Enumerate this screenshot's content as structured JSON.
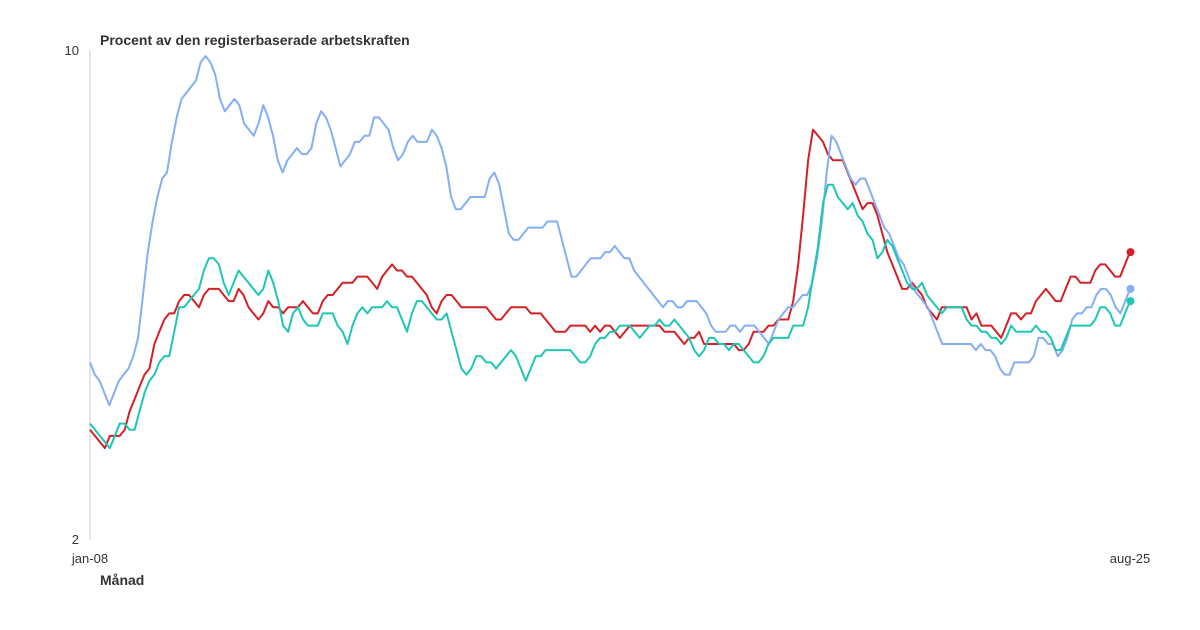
{
  "chart_data": {
    "type": "line",
    "ylabel": "Procent av den registerbaserade arbetskraften",
    "xlabel": "Månad",
    "ylim": [
      2,
      10
    ],
    "yticks": [
      "10",
      "2"
    ],
    "xticks": [
      "jan-08",
      "aug-25"
    ],
    "x_start": "2008-01",
    "x_end": "2025-08",
    "grid": false,
    "legend": "none",
    "series": [
      {
        "color": "#d42027",
        "values": [
          3.8,
          3.7,
          3.6,
          3.5,
          3.7,
          3.7,
          3.7,
          3.8,
          4.1,
          4.3,
          4.5,
          4.7,
          4.8,
          5.2,
          5.4,
          5.6,
          5.7,
          5.7,
          5.9,
          6.0,
          6.0,
          5.9,
          5.8,
          6.0,
          6.1,
          6.1,
          6.1,
          6.0,
          5.9,
          5.9,
          6.1,
          6.0,
          5.8,
          5.7,
          5.6,
          5.7,
          5.9,
          5.8,
          5.8,
          5.7,
          5.8,
          5.8,
          5.8,
          5.9,
          5.8,
          5.7,
          5.7,
          5.9,
          6.0,
          6.0,
          6.1,
          6.2,
          6.2,
          6.2,
          6.3,
          6.3,
          6.3,
          6.2,
          6.1,
          6.3,
          6.4,
          6.5,
          6.4,
          6.4,
          6.3,
          6.3,
          6.2,
          6.1,
          6.0,
          5.8,
          5.7,
          5.9,
          6.0,
          6.0,
          5.9,
          5.8,
          5.8,
          5.8,
          5.8,
          5.8,
          5.8,
          5.7,
          5.6,
          5.6,
          5.7,
          5.8,
          5.8,
          5.8,
          5.8,
          5.7,
          5.7,
          5.7,
          5.6,
          5.5,
          5.4,
          5.4,
          5.4,
          5.5,
          5.5,
          5.5,
          5.5,
          5.4,
          5.5,
          5.4,
          5.5,
          5.5,
          5.4,
          5.3,
          5.4,
          5.5,
          5.5,
          5.5,
          5.5,
          5.5,
          5.5,
          5.5,
          5.4,
          5.4,
          5.4,
          5.3,
          5.2,
          5.3,
          5.3,
          5.4,
          5.2,
          5.2,
          5.2,
          5.2,
          5.2,
          5.2,
          5.2,
          5.1,
          5.1,
          5.2,
          5.4,
          5.4,
          5.4,
          5.5,
          5.5,
          5.6,
          5.6,
          5.6,
          5.9,
          6.5,
          7.3,
          8.2,
          8.7,
          8.6,
          8.5,
          8.3,
          8.2,
          8.2,
          8.2,
          8.0,
          7.8,
          7.6,
          7.4,
          7.5,
          7.5,
          7.3,
          7.0,
          6.7,
          6.5,
          6.3,
          6.1,
          6.1,
          6.2,
          6.1,
          6.0,
          5.8,
          5.7,
          5.6,
          5.8,
          5.8,
          5.8,
          5.8,
          5.8,
          5.8,
          5.6,
          5.7,
          5.5,
          5.5,
          5.5,
          5.4,
          5.3,
          5.5,
          5.7,
          5.7,
          5.6,
          5.7,
          5.7,
          5.9,
          6.0,
          6.1,
          6.0,
          5.9,
          5.9,
          6.1,
          6.3,
          6.3,
          6.2,
          6.2,
          6.2,
          6.4,
          6.5,
          6.5,
          6.4,
          6.3,
          6.3,
          6.5,
          6.7
        ]
      },
      {
        "color": "#84aef5",
        "values": [
          4.9,
          4.7,
          4.6,
          4.4,
          4.2,
          4.4,
          4.6,
          4.7,
          4.8,
          5.0,
          5.3,
          6.0,
          6.7,
          7.2,
          7.6,
          7.9,
          8.0,
          8.5,
          8.9,
          9.2,
          9.3,
          9.4,
          9.5,
          9.8,
          9.9,
          9.8,
          9.6,
          9.2,
          9.0,
          9.1,
          9.2,
          9.1,
          8.8,
          8.7,
          8.6,
          8.8,
          9.1,
          8.9,
          8.6,
          8.2,
          8.0,
          8.2,
          8.3,
          8.4,
          8.3,
          8.3,
          8.4,
          8.8,
          9.0,
          8.9,
          8.7,
          8.4,
          8.1,
          8.2,
          8.3,
          8.5,
          8.5,
          8.6,
          8.6,
          8.9,
          8.9,
          8.8,
          8.7,
          8.4,
          8.2,
          8.3,
          8.5,
          8.6,
          8.5,
          8.5,
          8.5,
          8.7,
          8.6,
          8.4,
          8.1,
          7.6,
          7.4,
          7.4,
          7.5,
          7.6,
          7.6,
          7.6,
          7.6,
          7.9,
          8.0,
          7.8,
          7.4,
          7.0,
          6.9,
          6.9,
          7.0,
          7.1,
          7.1,
          7.1,
          7.1,
          7.2,
          7.2,
          7.2,
          6.9,
          6.6,
          6.3,
          6.3,
          6.4,
          6.5,
          6.6,
          6.6,
          6.6,
          6.7,
          6.7,
          6.8,
          6.7,
          6.6,
          6.6,
          6.4,
          6.3,
          6.2,
          6.1,
          6.0,
          5.9,
          5.8,
          5.9,
          5.9,
          5.8,
          5.8,
          5.9,
          5.9,
          5.9,
          5.8,
          5.7,
          5.5,
          5.4,
          5.4,
          5.4,
          5.5,
          5.5,
          5.4,
          5.5,
          5.5,
          5.5,
          5.4,
          5.3,
          5.2,
          5.4,
          5.6,
          5.7,
          5.8,
          5.8,
          5.9,
          6.0,
          6.0,
          6.2,
          6.6,
          7.2,
          8.0,
          8.6,
          8.5,
          8.3,
          8.1,
          7.9,
          7.8,
          7.9,
          7.9,
          7.7,
          7.5,
          7.3,
          7.1,
          7.0,
          6.8,
          6.6,
          6.5,
          6.3,
          6.1,
          6.0,
          5.9,
          5.8,
          5.6,
          5.4,
          5.2,
          5.2,
          5.2,
          5.2,
          5.2,
          5.2,
          5.2,
          5.1,
          5.2,
          5.1,
          5.1,
          5.0,
          4.8,
          4.7,
          4.7,
          4.9,
          4.9,
          4.9,
          4.9,
          5.0,
          5.3,
          5.3,
          5.2,
          5.2,
          5.0,
          5.1,
          5.3,
          5.6,
          5.7,
          5.7,
          5.8,
          5.8,
          6.0,
          6.1,
          6.1,
          6.0,
          5.8,
          5.7,
          5.9,
          6.1
        ]
      },
      {
        "color": "#1ec6b4",
        "values": [
          3.9,
          3.8,
          3.7,
          3.6,
          3.5,
          3.7,
          3.9,
          3.9,
          3.8,
          3.8,
          4.1,
          4.4,
          4.6,
          4.7,
          4.9,
          5.0,
          5.0,
          5.4,
          5.8,
          5.8,
          5.9,
          6.0,
          6.1,
          6.4,
          6.6,
          6.6,
          6.5,
          6.2,
          6.0,
          6.2,
          6.4,
          6.3,
          6.2,
          6.1,
          6.0,
          6.1,
          6.4,
          6.2,
          5.9,
          5.5,
          5.4,
          5.7,
          5.8,
          5.6,
          5.5,
          5.5,
          5.5,
          5.7,
          5.7,
          5.7,
          5.5,
          5.4,
          5.2,
          5.5,
          5.7,
          5.8,
          5.7,
          5.8,
          5.8,
          5.8,
          5.9,
          5.8,
          5.8,
          5.6,
          5.4,
          5.7,
          5.9,
          5.9,
          5.8,
          5.7,
          5.6,
          5.6,
          5.7,
          5.4,
          5.1,
          4.8,
          4.7,
          4.8,
          5.0,
          5.0,
          4.9,
          4.9,
          4.8,
          4.9,
          5.0,
          5.1,
          5.0,
          4.8,
          4.6,
          4.8,
          5.0,
          5.0,
          5.1,
          5.1,
          5.1,
          5.1,
          5.1,
          5.1,
          5.0,
          4.9,
          4.9,
          5.0,
          5.2,
          5.3,
          5.3,
          5.4,
          5.4,
          5.5,
          5.5,
          5.5,
          5.4,
          5.3,
          5.4,
          5.5,
          5.5,
          5.6,
          5.5,
          5.5,
          5.6,
          5.5,
          5.4,
          5.3,
          5.1,
          5.0,
          5.1,
          5.3,
          5.3,
          5.2,
          5.2,
          5.1,
          5.2,
          5.2,
          5.1,
          5.0,
          4.9,
          4.9,
          5.0,
          5.2,
          5.3,
          5.3,
          5.3,
          5.3,
          5.5,
          5.5,
          5.5,
          5.8,
          6.3,
          6.8,
          7.5,
          7.8,
          7.8,
          7.6,
          7.5,
          7.4,
          7.5,
          7.3,
          7.2,
          7.0,
          6.9,
          6.6,
          6.7,
          6.9,
          6.8,
          6.6,
          6.4,
          6.2,
          6.1,
          6.1,
          6.2,
          6.0,
          5.9,
          5.8,
          5.7,
          5.8,
          5.8,
          5.8,
          5.8,
          5.6,
          5.5,
          5.5,
          5.4,
          5.4,
          5.3,
          5.3,
          5.2,
          5.3,
          5.5,
          5.4,
          5.4,
          5.4,
          5.4,
          5.5,
          5.4,
          5.4,
          5.3,
          5.1,
          5.1,
          5.3,
          5.5,
          5.5,
          5.5,
          5.5,
          5.5,
          5.6,
          5.8,
          5.8,
          5.7,
          5.5,
          5.5,
          5.7,
          5.9
        ]
      }
    ]
  }
}
